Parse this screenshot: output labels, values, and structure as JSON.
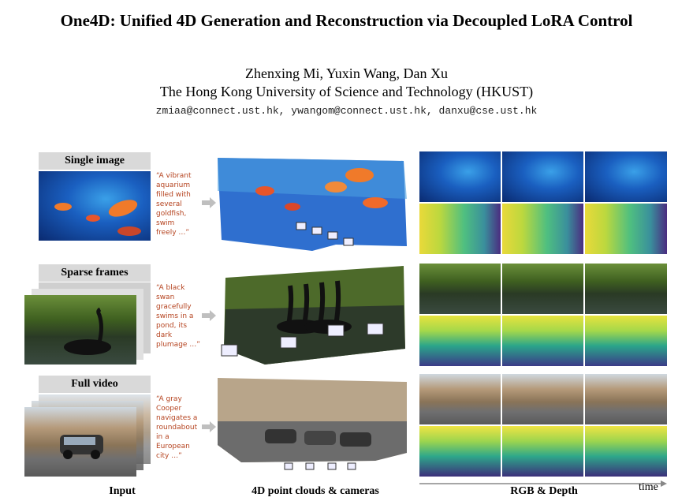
{
  "paper": {
    "title": "One4D: Unified 4D Generation and Reconstruction via Decoupled LoRA Control",
    "authors": "Zhenxing Mi, Yuxin Wang, Dan Xu",
    "affiliation": "The Hong Kong University of Science and Technology (HKUST)",
    "emails": "zmiaa@connect.ust.hk, ywangom@connect.ust.hk, danxu@cse.ust.hk"
  },
  "figure": {
    "rows": [
      {
        "label": "Single image",
        "prompt_lines": [
          "“A vibrant",
          "aquarium",
          "filled with",
          "several",
          "goldfish,",
          "swim",
          "freely …”"
        ]
      },
      {
        "label": "Sparse frames",
        "prompt_lines": [
          "“A black",
          "swan",
          "gracefully",
          "swims in a",
          "pond, its",
          "dark",
          "plumage …”"
        ]
      },
      {
        "label": "Full video",
        "prompt_lines": [
          "“A gray",
          "Cooper",
          "navigates a",
          "roundabout",
          "in a",
          "European",
          "city …”"
        ]
      }
    ],
    "captions": {
      "input": "Input",
      "clouds": "4D point clouds & cameras",
      "rgbd": "RGB & Depth",
      "time": "time"
    }
  }
}
